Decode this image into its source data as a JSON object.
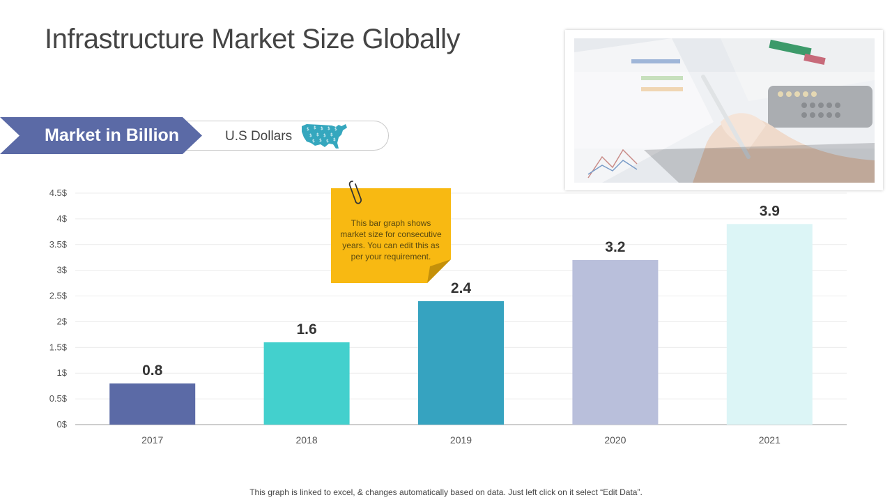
{
  "page": {
    "title": "Infrastructure Market Size Globally",
    "footer_note": "This graph is linked to excel, & changes automatically based on data. Just left click on it select “Edit Data”."
  },
  "banner": {
    "label": "Market in Billion",
    "unit": "U.S Dollars",
    "accent_color": "#5b6aa6",
    "icon": "usa-map-icon",
    "icon_color": "#35a7be"
  },
  "sticky_note": {
    "text": "This bar graph shows market size for consecutive years. You can edit this as per your requirement.",
    "color": "#f8b912",
    "icon": "paperclip-icon"
  },
  "photo": {
    "description_icon": "business-analysis-photo"
  },
  "chart_data": {
    "type": "bar",
    "categories": [
      "2017",
      "2018",
      "2019",
      "2020",
      "2021"
    ],
    "values": [
      0.8,
      1.6,
      2.4,
      3.2,
      3.9
    ],
    "value_labels": [
      "0.8",
      "1.6",
      "2.4",
      "3.2",
      "3.9"
    ],
    "bar_colors": [
      "#5b6aa6",
      "#43d0cd",
      "#36a3c0",
      "#b9bfdb",
      "#dcf5f6"
    ],
    "yticks": [
      "0$",
      "0.5$",
      "1$",
      "1.5$",
      "2$",
      "2.5$",
      "3$",
      "3.5$",
      "4$",
      "4.5$"
    ],
    "ylim": [
      0,
      4.5
    ],
    "grid": true,
    "title": "",
    "xlabel": "",
    "ylabel": ""
  }
}
